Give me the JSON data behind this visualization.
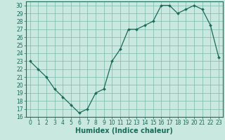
{
  "x": [
    0,
    1,
    2,
    3,
    4,
    5,
    6,
    7,
    8,
    9,
    10,
    11,
    12,
    13,
    14,
    15,
    16,
    17,
    18,
    19,
    20,
    21,
    22,
    23
  ],
  "y": [
    23,
    22,
    21,
    19.5,
    18.5,
    17.5,
    16.5,
    17,
    19,
    19.5,
    23,
    24.5,
    27,
    27,
    27.5,
    28,
    30,
    30,
    29,
    29.5,
    30,
    29.5,
    27.5,
    23.5
  ],
  "line_color": "#1a6b5a",
  "marker": "D",
  "marker_size": 2.0,
  "bg_color": "#c8e8e0",
  "grid_color": "#7ab8a8",
  "xlabel": "Humidex (Indice chaleur)",
  "xlim": [
    -0.5,
    23.5
  ],
  "ylim": [
    16,
    30.5
  ],
  "yticks": [
    16,
    17,
    18,
    19,
    20,
    21,
    22,
    23,
    24,
    25,
    26,
    27,
    28,
    29,
    30
  ],
  "xticks": [
    0,
    1,
    2,
    3,
    4,
    5,
    6,
    7,
    8,
    9,
    10,
    11,
    12,
    13,
    14,
    15,
    16,
    17,
    18,
    19,
    20,
    21,
    22,
    23
  ],
  "tick_fontsize": 5.5,
  "xlabel_fontsize": 7.0,
  "axis_color": "#1a6b5a",
  "linewidth": 0.9
}
